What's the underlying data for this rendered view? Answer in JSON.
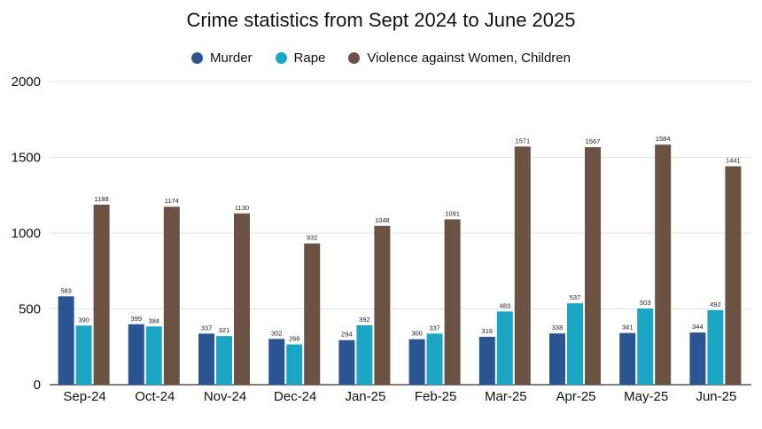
{
  "chart_data": {
    "type": "bar",
    "title": "Crime statistics from Sept 2024 to June 2025",
    "categories": [
      "Sep-24",
      "Oct-24",
      "Nov-24",
      "Dec-24",
      "Jan-25",
      "Feb-25",
      "Mar-25",
      "Apr-25",
      "May-25",
      "Jun-25"
    ],
    "series": [
      {
        "name": "Murder",
        "color": "#2b5592",
        "values": [
          583,
          399,
          337,
          302,
          294,
          300,
          316,
          338,
          341,
          344
        ]
      },
      {
        "name": "Rape",
        "color": "#1aa6c4",
        "values": [
          390,
          384,
          321,
          266,
          392,
          337,
          483,
          537,
          503,
          492
        ]
      },
      {
        "name": "Violence against Women, Children",
        "color": "#6b5242",
        "values": [
          1188,
          1174,
          1130,
          932,
          1048,
          1091,
          1571,
          1567,
          1584,
          1441
        ]
      }
    ],
    "ylim": [
      0,
      2000
    ],
    "yticks": [
      0,
      500,
      1000,
      1500,
      2000
    ],
    "xlabel": "",
    "ylabel": "",
    "legend_position": "top-center",
    "grid": true,
    "data_labels": true
  }
}
